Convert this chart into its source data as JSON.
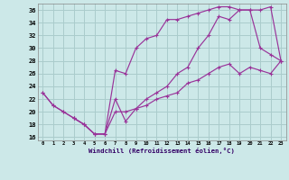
{
  "xlabel": "Windchill (Refroidissement éolien,°C)",
  "ylabel": "",
  "xlim": [
    -0.5,
    23.5
  ],
  "ylim": [
    15.5,
    37.0
  ],
  "xticks": [
    0,
    1,
    2,
    3,
    4,
    5,
    6,
    7,
    8,
    9,
    10,
    11,
    12,
    13,
    14,
    15,
    16,
    17,
    18,
    19,
    20,
    21,
    22,
    23
  ],
  "yticks": [
    16,
    18,
    20,
    22,
    24,
    26,
    28,
    30,
    32,
    34,
    36
  ],
  "bg_color": "#cce8e8",
  "grid_color": "#aacccc",
  "line_color": "#993399",
  "line1_x": [
    0,
    1,
    2,
    3,
    4,
    5,
    6,
    7,
    8,
    9,
    10,
    11,
    12,
    13,
    14,
    15,
    16,
    17,
    18,
    19,
    20,
    21,
    22,
    23
  ],
  "line1_y": [
    23,
    21,
    20,
    19,
    18,
    16.5,
    16.5,
    22,
    18.5,
    20.5,
    22,
    23,
    24,
    26,
    27,
    30,
    32,
    35,
    34.5,
    36,
    36,
    36,
    36.5,
    28
  ],
  "line2_x": [
    0,
    1,
    2,
    3,
    4,
    5,
    6,
    7,
    8,
    9,
    10,
    11,
    12,
    13,
    14,
    15,
    16,
    17,
    18,
    19,
    20,
    21,
    22,
    23
  ],
  "line2_y": [
    23,
    21,
    20,
    19,
    18,
    16.5,
    16.5,
    26.5,
    26,
    30,
    31.5,
    32,
    34.5,
    34.5,
    35,
    35.5,
    36,
    36.5,
    36.5,
    36,
    36,
    30,
    29,
    28
  ],
  "line3_x": [
    3,
    4,
    5,
    6,
    7,
    8,
    9,
    10,
    11,
    12,
    13,
    14,
    15,
    16,
    17,
    18,
    19,
    20,
    21,
    22,
    23
  ],
  "line3_y": [
    19,
    18,
    16.5,
    16.5,
    20,
    20,
    20.5,
    21,
    22,
    22.5,
    23,
    24.5,
    25,
    26,
    27,
    27.5,
    26,
    27,
    26.5,
    26,
    28
  ]
}
